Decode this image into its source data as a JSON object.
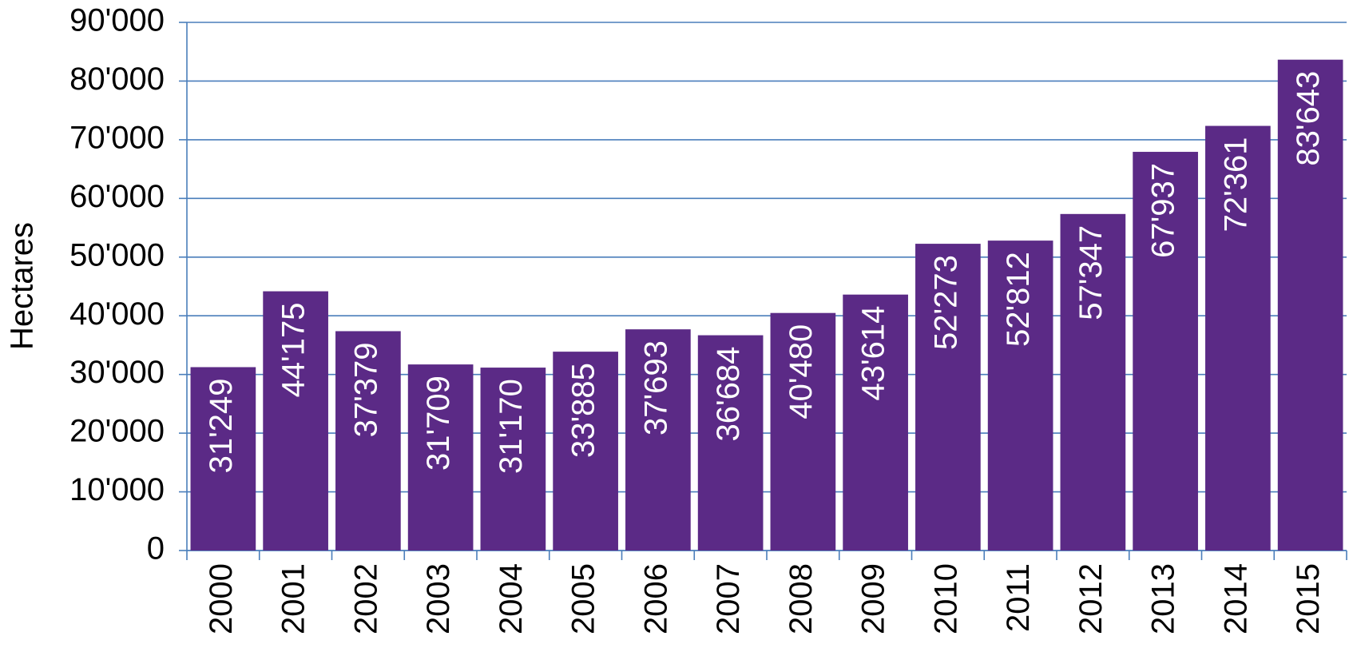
{
  "chart_data": {
    "type": "bar",
    "y_label": "Hectares",
    "categories": [
      "2000",
      "2001",
      "2002",
      "2003",
      "2004",
      "2005",
      "2006",
      "2007",
      "2008",
      "2009",
      "2010",
      "2011",
      "2012",
      "2013",
      "2014",
      "2015"
    ],
    "values": [
      31249,
      44175,
      37379,
      31709,
      31170,
      33885,
      37693,
      36684,
      40480,
      43614,
      52273,
      52812,
      57347,
      67937,
      72361,
      83643
    ],
    "value_labels": [
      "31'249",
      "44'175",
      "37'379",
      "31'709",
      "31'170",
      "33'885",
      "37'693",
      "36'684",
      "40'480",
      "43'614",
      "52'273",
      "52'812",
      "57'347",
      "67'937",
      "72'361",
      "83'643"
    ],
    "color": "#5b2a86",
    "ylim": [
      0,
      90000
    ],
    "yticks": [
      0,
      {
        "value": 10000,
        "label": "10'000"
      },
      {
        "value": 20000,
        "label": "20'000"
      },
      {
        "value": 30000,
        "label": "30'000"
      },
      {
        "value": 40000,
        "label": "40'000"
      },
      {
        "value": 50000,
        "label": "50'000"
      },
      {
        "value": 60000,
        "label": "60'000"
      },
      {
        "value": 70000,
        "label": "70'000"
      },
      {
        "value": 80000,
        "label": "80'000"
      },
      {
        "value": 90000,
        "label": "90'000"
      }
    ],
    "grid": true
  }
}
